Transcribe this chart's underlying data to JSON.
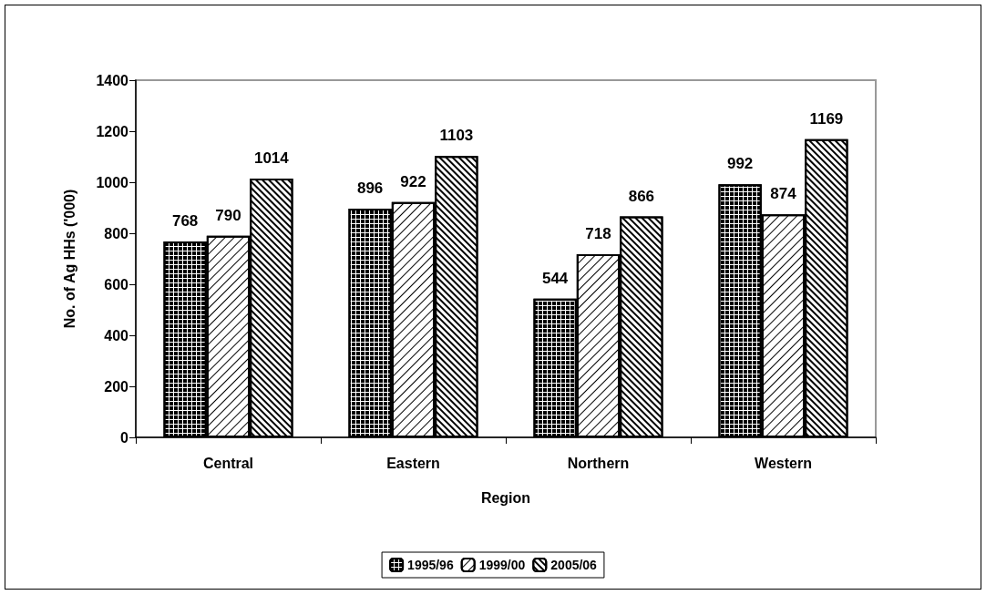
{
  "chart_data": {
    "type": "bar",
    "xlabel": "Region",
    "ylabel": "No. of Ag HHs ('000)",
    "categories": [
      "Central",
      "Eastern",
      "Northern",
      "Western"
    ],
    "series": [
      {
        "name": "1995/96",
        "color": "#ffffff",
        "values": [
          768,
          896,
          544,
          992
        ]
      },
      {
        "name": "1999/00",
        "color": "#ffffff",
        "values": [
          790,
          922,
          718,
          874
        ]
      },
      {
        "name": "2005/06",
        "color": "#ffffff",
        "values": [
          1014,
          1103,
          866,
          1169
        ]
      }
    ],
    "ylim": [
      0,
      1400
    ],
    "yticks": [
      0,
      200,
      400,
      600,
      800,
      1000,
      1200,
      1400
    ],
    "grid": false,
    "legend": "bottom",
    "data_labels": true
  }
}
